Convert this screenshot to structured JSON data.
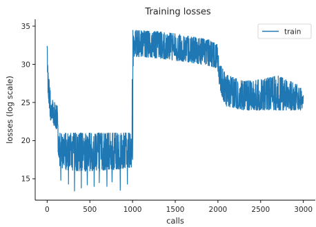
{
  "chart_data": {
    "type": "line",
    "title": "Training losses",
    "xlabel": "calls",
    "ylabel": "losses (log scale)",
    "xlim": [
      -140,
      3140
    ],
    "ylim": [
      12.2,
      35.9
    ],
    "x_ticks": [
      0,
      500,
      1000,
      1500,
      2000,
      2500,
      3000
    ],
    "y_ticks": [
      15,
      20,
      25,
      30,
      35
    ],
    "x_tick_labels": [
      "0",
      "500",
      "1000",
      "1500",
      "2000",
      "2500",
      "3000"
    ],
    "y_tick_labels": [
      "15",
      "20",
      "25",
      "30",
      "35"
    ],
    "legend": {
      "position": "upper right",
      "entries": [
        "train"
      ]
    },
    "grid": false,
    "series": [
      {
        "name": "train",
        "color": "#1f77b4",
        "envelope": {
          "x": [
            0,
            10,
            30,
            60,
            90,
            120,
            130,
            150,
            200,
            400,
            600,
            800,
            990,
            1000,
            1010,
            1100,
            1300,
            1500,
            1700,
            1900,
            1990,
            2010,
            2020,
            2050,
            2100,
            2300,
            2500,
            2700,
            2900,
            3000
          ],
          "low": [
            29.5,
            26.0,
            23.0,
            22.0,
            22.0,
            21.0,
            17.0,
            16.5,
            16.2,
            16.0,
            16.0,
            16.2,
            16.5,
            17.5,
            31.0,
            31.0,
            30.8,
            30.5,
            30.2,
            29.8,
            29.5,
            28.0,
            27.0,
            25.5,
            24.5,
            24.0,
            24.0,
            24.0,
            24.0,
            24.0
          ],
          "high": [
            32.4,
            30.0,
            27.0,
            26.0,
            25.0,
            24.5,
            22.0,
            21.0,
            21.0,
            21.0,
            21.0,
            21.0,
            21.0,
            34.7,
            34.6,
            34.4,
            34.3,
            34.0,
            33.6,
            33.2,
            32.6,
            31.0,
            30.5,
            29.5,
            28.6,
            27.8,
            28.0,
            28.5,
            27.5,
            27.0
          ]
        },
        "dips": [
          {
            "x": 160,
            "y": 14.8
          },
          {
            "x": 250,
            "y": 14.3
          },
          {
            "x": 320,
            "y": 13.4
          },
          {
            "x": 400,
            "y": 13.8
          },
          {
            "x": 470,
            "y": 14.2
          },
          {
            "x": 550,
            "y": 14.0
          },
          {
            "x": 610,
            "y": 14.5
          },
          {
            "x": 700,
            "y": 14.0
          },
          {
            "x": 760,
            "y": 14.6
          },
          {
            "x": 855,
            "y": 13.5
          },
          {
            "x": 940,
            "y": 14.3
          }
        ]
      }
    ]
  }
}
